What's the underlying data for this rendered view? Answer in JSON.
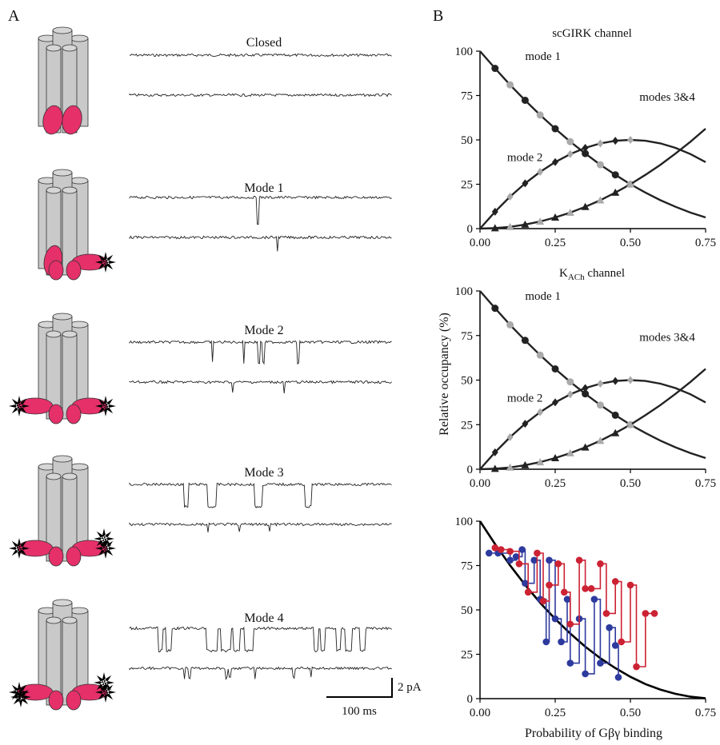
{
  "panel_a": {
    "label": "A",
    "rows": [
      {
        "title": "Closed",
        "bound": 0
      },
      {
        "title": "Mode 1",
        "bound": 1
      },
      {
        "title": "Mode 2",
        "bound": 2
      },
      {
        "title": "Mode 3",
        "bound": 3
      },
      {
        "title": "Mode 4",
        "bound": 4
      }
    ],
    "scale_bar": {
      "current": "2 pA",
      "time": "100 ms"
    }
  },
  "panel_b": {
    "label": "B",
    "y_axis_label": "Relative occupancy (%)",
    "x_axis_label": "Probability of Gβγ binding"
  },
  "chart_data": [
    {
      "type": "line",
      "title": "scGIRK channel",
      "xlim": [
        0,
        0.75
      ],
      "ylim": [
        0,
        100
      ],
      "xticks": [
        "0.00",
        "0.25",
        "0.50",
        "0.75"
      ],
      "yticks": [
        "0",
        "25",
        "50",
        "75",
        "100"
      ],
      "series": [
        {
          "name": "mode 1",
          "x": [
            0,
            0.05,
            0.1,
            0.15,
            0.2,
            0.25,
            0.3,
            0.35,
            0.4,
            0.45,
            0.5,
            0.55,
            0.6,
            0.65,
            0.7,
            0.75
          ],
          "y": [
            100,
            90.3,
            81,
            72.3,
            64,
            56.3,
            49,
            42.3,
            36,
            30.3,
            25,
            20.3,
            16,
            12.3,
            9,
            6.3
          ]
        },
        {
          "name": "mode 2",
          "x": [
            0,
            0.05,
            0.1,
            0.15,
            0.2,
            0.25,
            0.3,
            0.35,
            0.4,
            0.45,
            0.5,
            0.55,
            0.6,
            0.65,
            0.7,
            0.75
          ],
          "y": [
            0,
            9.5,
            18,
            25.5,
            32,
            37.5,
            42,
            45.5,
            48,
            49.5,
            50,
            49.5,
            48,
            45.5,
            42,
            37.5
          ]
        },
        {
          "name": "modes 3&4",
          "x": [
            0,
            0.05,
            0.1,
            0.15,
            0.2,
            0.25,
            0.3,
            0.35,
            0.4,
            0.45,
            0.5,
            0.55,
            0.6,
            0.65,
            0.7,
            0.75
          ],
          "y": [
            0,
            0.3,
            1,
            2.3,
            4,
            6.3,
            9,
            12.3,
            16,
            20.3,
            25,
            30.3,
            36,
            42.3,
            49,
            56.3
          ]
        }
      ]
    },
    {
      "type": "line",
      "title": "K",
      "title_subscript": "ACh",
      "title_suffix": " channel",
      "xlim": [
        0,
        0.75
      ],
      "ylim": [
        0,
        100
      ],
      "xticks": [
        "0.00",
        "0.25",
        "0.50",
        "0.75"
      ],
      "yticks": [
        "0",
        "25",
        "50",
        "75",
        "100"
      ],
      "series": [
        {
          "name": "mode 1",
          "x": [
            0,
            0.05,
            0.1,
            0.15,
            0.2,
            0.25,
            0.3,
            0.35,
            0.4,
            0.45,
            0.5,
            0.55,
            0.6,
            0.65,
            0.7,
            0.75
          ],
          "y": [
            100,
            90.3,
            81,
            72.3,
            64,
            56.3,
            49,
            42.3,
            36,
            30.3,
            25,
            20.3,
            16,
            12.3,
            9,
            6.3
          ]
        },
        {
          "name": "mode 2",
          "x": [
            0,
            0.05,
            0.1,
            0.15,
            0.2,
            0.25,
            0.3,
            0.35,
            0.4,
            0.45,
            0.5,
            0.55,
            0.6,
            0.65,
            0.7,
            0.75
          ],
          "y": [
            0,
            9.5,
            18,
            25.5,
            32,
            37.5,
            42,
            45.5,
            48,
            49.5,
            50,
            49.5,
            48,
            45.5,
            42,
            37.5
          ]
        },
        {
          "name": "modes 3&4",
          "x": [
            0,
            0.05,
            0.1,
            0.15,
            0.2,
            0.25,
            0.3,
            0.35,
            0.4,
            0.45,
            0.5,
            0.55,
            0.6,
            0.65,
            0.7,
            0.75
          ],
          "y": [
            0,
            0.3,
            1,
            2.3,
            4,
            6.3,
            9,
            12.3,
            16,
            20.3,
            25,
            30.3,
            36,
            42.3,
            49,
            56.3
          ]
        }
      ]
    },
    {
      "type": "line",
      "title": "",
      "xlim": [
        0,
        0.75
      ],
      "ylim": [
        0,
        100
      ],
      "xticks": [
        "0.00",
        "0.25",
        "0.50",
        "0.75"
      ],
      "yticks": [
        "0",
        "25",
        "50",
        "75",
        "100"
      ],
      "xlabel": "Probability of Gβγ binding",
      "series": [
        {
          "curve": true,
          "color": "#000000",
          "x": [
            0,
            0.05,
            0.1,
            0.15,
            0.2,
            0.25,
            0.3,
            0.35,
            0.4,
            0.45,
            0.5,
            0.55,
            0.6,
            0.65,
            0.7,
            0.75
          ],
          "y": [
            100,
            87.1,
            75.1,
            64.1,
            54,
            44.9,
            36.7,
            29.3,
            22.8,
            17.2,
            12.3,
            8.2,
            5.1,
            2.7,
            1.1,
            0.2
          ]
        },
        {
          "step": true,
          "color": "#2d3a9e",
          "x": [
            0.03,
            0.06,
            0.1,
            0.12,
            0.14,
            0.15,
            0.18,
            0.2,
            0.22,
            0.23,
            0.25,
            0.27,
            0.29,
            0.3,
            0.33,
            0.35,
            0.38,
            0.4,
            0.43,
            0.45,
            0.46
          ],
          "y": [
            82,
            82,
            78,
            80,
            84,
            65,
            78,
            56,
            32,
            78,
            45,
            32,
            56,
            20,
            45,
            14,
            56,
            20,
            40,
            30,
            12
          ]
        },
        {
          "step": true,
          "color": "#cc2233",
          "x": [
            0.05,
            0.07,
            0.1,
            0.13,
            0.16,
            0.19,
            0.21,
            0.23,
            0.26,
            0.28,
            0.3,
            0.33,
            0.35,
            0.37,
            0.4,
            0.42,
            0.45,
            0.47,
            0.5,
            0.52,
            0.55,
            0.58
          ],
          "y": [
            85,
            84,
            83,
            76,
            60,
            82,
            55,
            64,
            76,
            60,
            42,
            78,
            62,
            62,
            76,
            48,
            66,
            32,
            64,
            18,
            48,
            48
          ]
        }
      ]
    }
  ]
}
